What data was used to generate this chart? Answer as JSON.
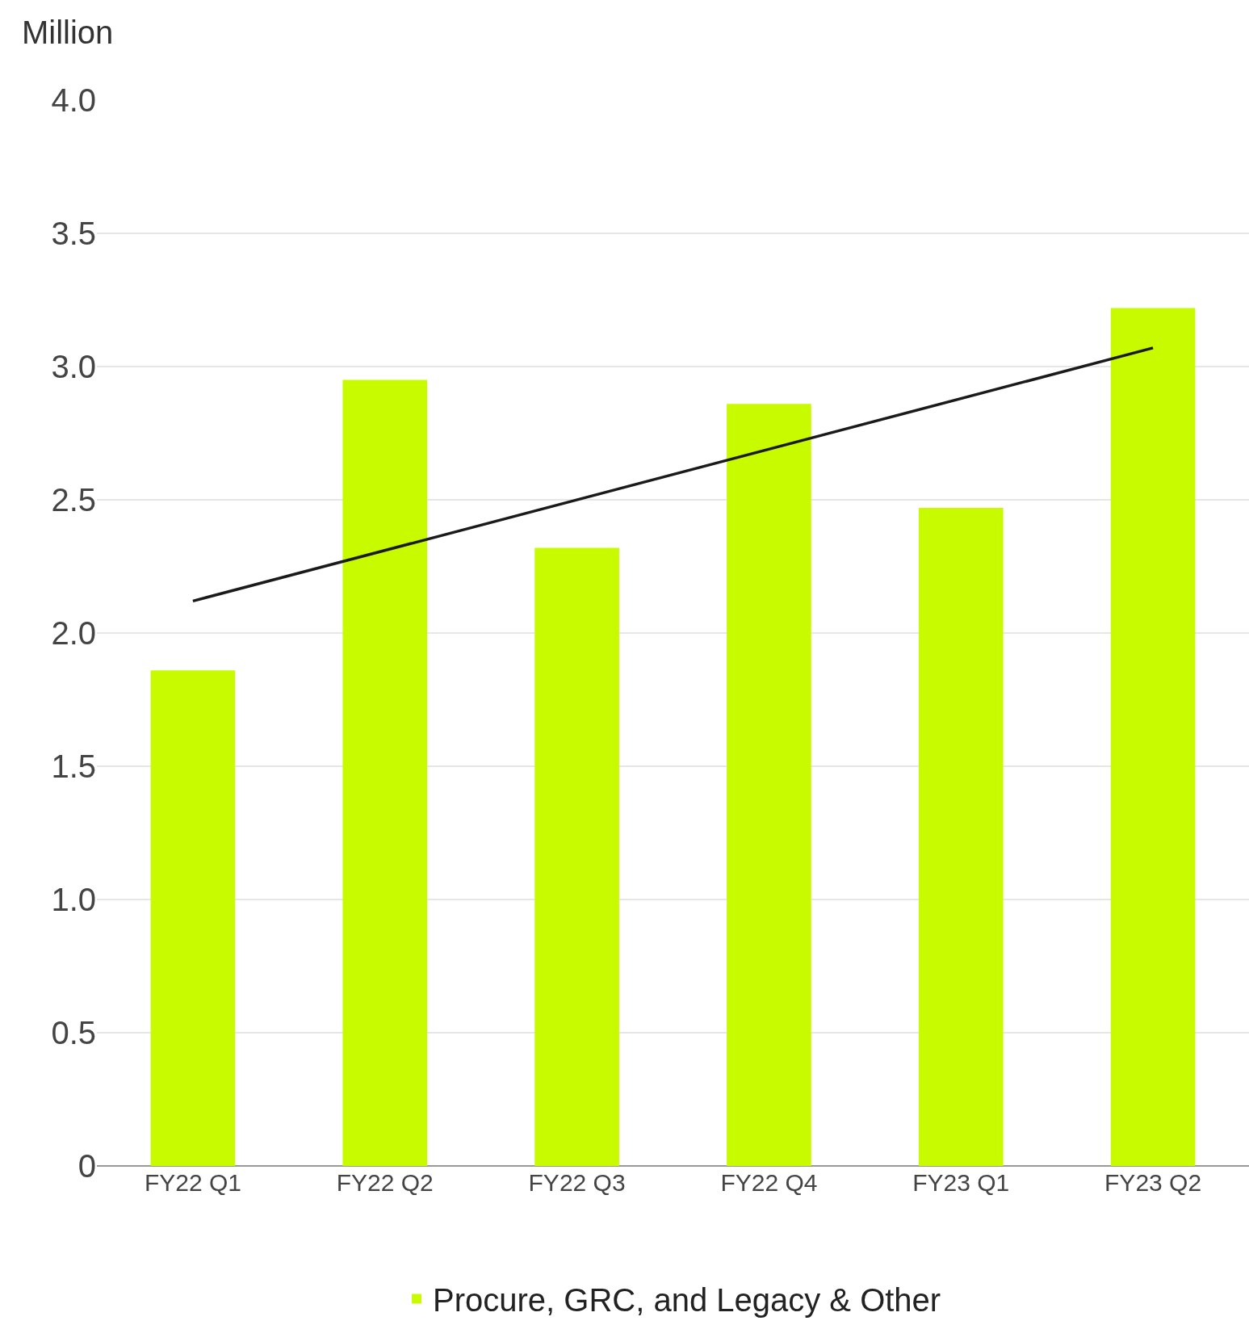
{
  "chart_data": {
    "type": "bar",
    "ylabel": "Million",
    "categories": [
      "FY22 Q1",
      "FY22 Q2",
      "FY22 Q3",
      "FY22 Q4",
      "FY23 Q1",
      "FY23 Q2"
    ],
    "series": [
      {
        "name": "Procure, GRC, and Legacy & Other",
        "color": "#c8fa00",
        "values": [
          1.86,
          2.95,
          2.32,
          2.86,
          2.47,
          3.22
        ]
      },
      {
        "type": "line",
        "color": "#1a1a1a",
        "x": [
          "FY22 Q1",
          "FY23 Q2"
        ],
        "values": [
          2.12,
          3.07
        ]
      }
    ],
    "ylim": [
      0,
      4.0
    ],
    "yticks": [
      0,
      {
        "value": 0.5,
        "label": "0.5"
      },
      {
        "value": 1,
        "label": "1.0"
      },
      {
        "value": 1.5,
        "label": "1.5"
      },
      {
        "value": 2,
        "label": "2.0"
      },
      {
        "value": 2.5,
        "label": "2.5"
      },
      {
        "value": 3,
        "label": "3.0"
      },
      {
        "value": 3.5,
        "label": "3.5"
      },
      {
        "value": 4,
        "label": "4.0"
      }
    ],
    "grid": "y",
    "legend": "bottom"
  }
}
